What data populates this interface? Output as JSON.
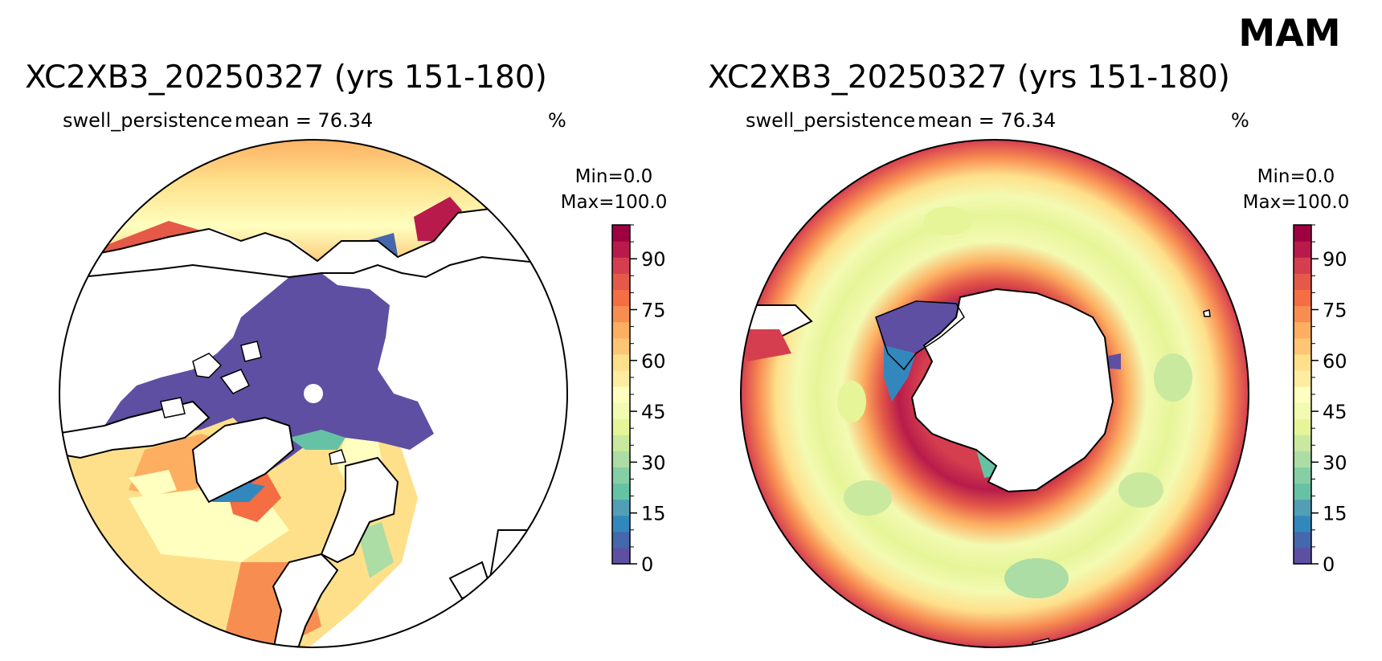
{
  "season": "MAM",
  "panels": [
    {
      "title": "XC2XB3_20250327 (yrs 151-180)",
      "variable": "swell_persistence",
      "mean_label": "mean = 76.34",
      "units": "%",
      "colorbar": {
        "min_label": "Min=0.0",
        "max_label": "Max=100.0"
      }
    },
    {
      "title": "XC2XB3_20250327 (yrs 151-180)",
      "variable": "swell_persistence",
      "mean_label": "mean = 76.34",
      "units": "%",
      "colorbar": {
        "min_label": "Min=0.0",
        "max_label": "Max=100.0"
      }
    }
  ],
  "colorbar_ticks": [
    "0",
    "15",
    "30",
    "45",
    "60",
    "75",
    "90"
  ],
  "colorbar_range": [
    0,
    100
  ],
  "colormap": [
    "#5e4fa2",
    "#4467ad",
    "#3288bd",
    "#529eb4",
    "#66c2a5",
    "#86cfa5",
    "#abdda4",
    "#c9e99f",
    "#e6f598",
    "#f3fab2",
    "#ffffbf",
    "#feeda1",
    "#fee08b",
    "#fdc574",
    "#fdae61",
    "#f88d52",
    "#f46d43",
    "#e45948",
    "#d53e4f",
    "#b81b4b",
    "#9e0142"
  ]
}
